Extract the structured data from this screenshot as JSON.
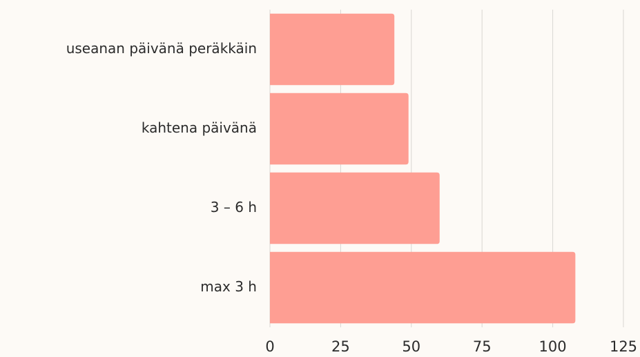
{
  "chart_data": {
    "type": "bar",
    "orientation": "horizontal",
    "categories": [
      "useanan päivänä peräkkäin",
      "kahtena päivänä",
      "3 – 6 h",
      "max 3 h"
    ],
    "values": [
      44,
      49,
      60,
      108
    ],
    "color": "#fe9e93",
    "xlim": [
      0,
      125
    ],
    "xticks": [
      0,
      25,
      50,
      75,
      100,
      125
    ],
    "grid": true
  }
}
